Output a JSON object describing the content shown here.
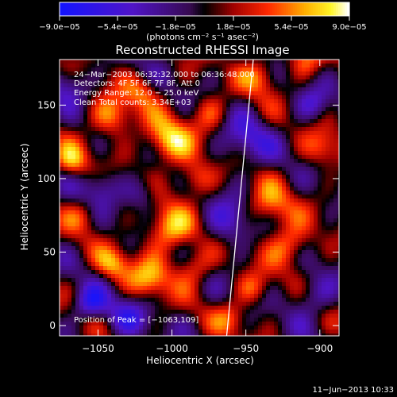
{
  "chart_data": {
    "type": "heatmap",
    "title": "Reconstructed RHESSI Image",
    "xlabel": "Heliocentric X (arcsec)",
    "ylabel": "Heliocentric Y (arcsec)",
    "xlim": [
      -1076,
      -887
    ],
    "ylim": [
      -7,
      181
    ],
    "xticks": [
      -1050,
      -1000,
      -950,
      -900
    ],
    "xtick_labels": [
      "−1050",
      "−1000",
      "−950",
      "−900"
    ],
    "yticks": [
      0,
      50,
      100,
      150
    ],
    "ytick_labels": [
      "0",
      "50",
      "100",
      "150"
    ],
    "colorbar": {
      "min": -9e-05,
      "max": 9e-05,
      "tick_labels": [
        "−9.0e−05",
        "−5.4e−05",
        "−1.8e−05",
        "1.8e−05",
        "5.4e−05",
        "9.0e−05"
      ],
      "unit_label": "(photons cm⁻² s⁻¹ asec⁻²)"
    },
    "annotations": {
      "time_range": "24−Mar−2003 06:32:32.000 to 06:36:48.000",
      "detectors": "Detectors: 4F 5F 6F 7F 8F, Att 0",
      "energy_range": "Energy Range: 12.0 − 25.0 keV",
      "method": "Clean     Total counts: 3.34E+03",
      "peak_position": "Position of Peak = [−1063,109]"
    },
    "limb_line": {
      "x": [
        -963,
        -945
      ],
      "y": [
        -7,
        181
      ]
    },
    "date_stamp": "11−Jun−2013 10:33"
  }
}
